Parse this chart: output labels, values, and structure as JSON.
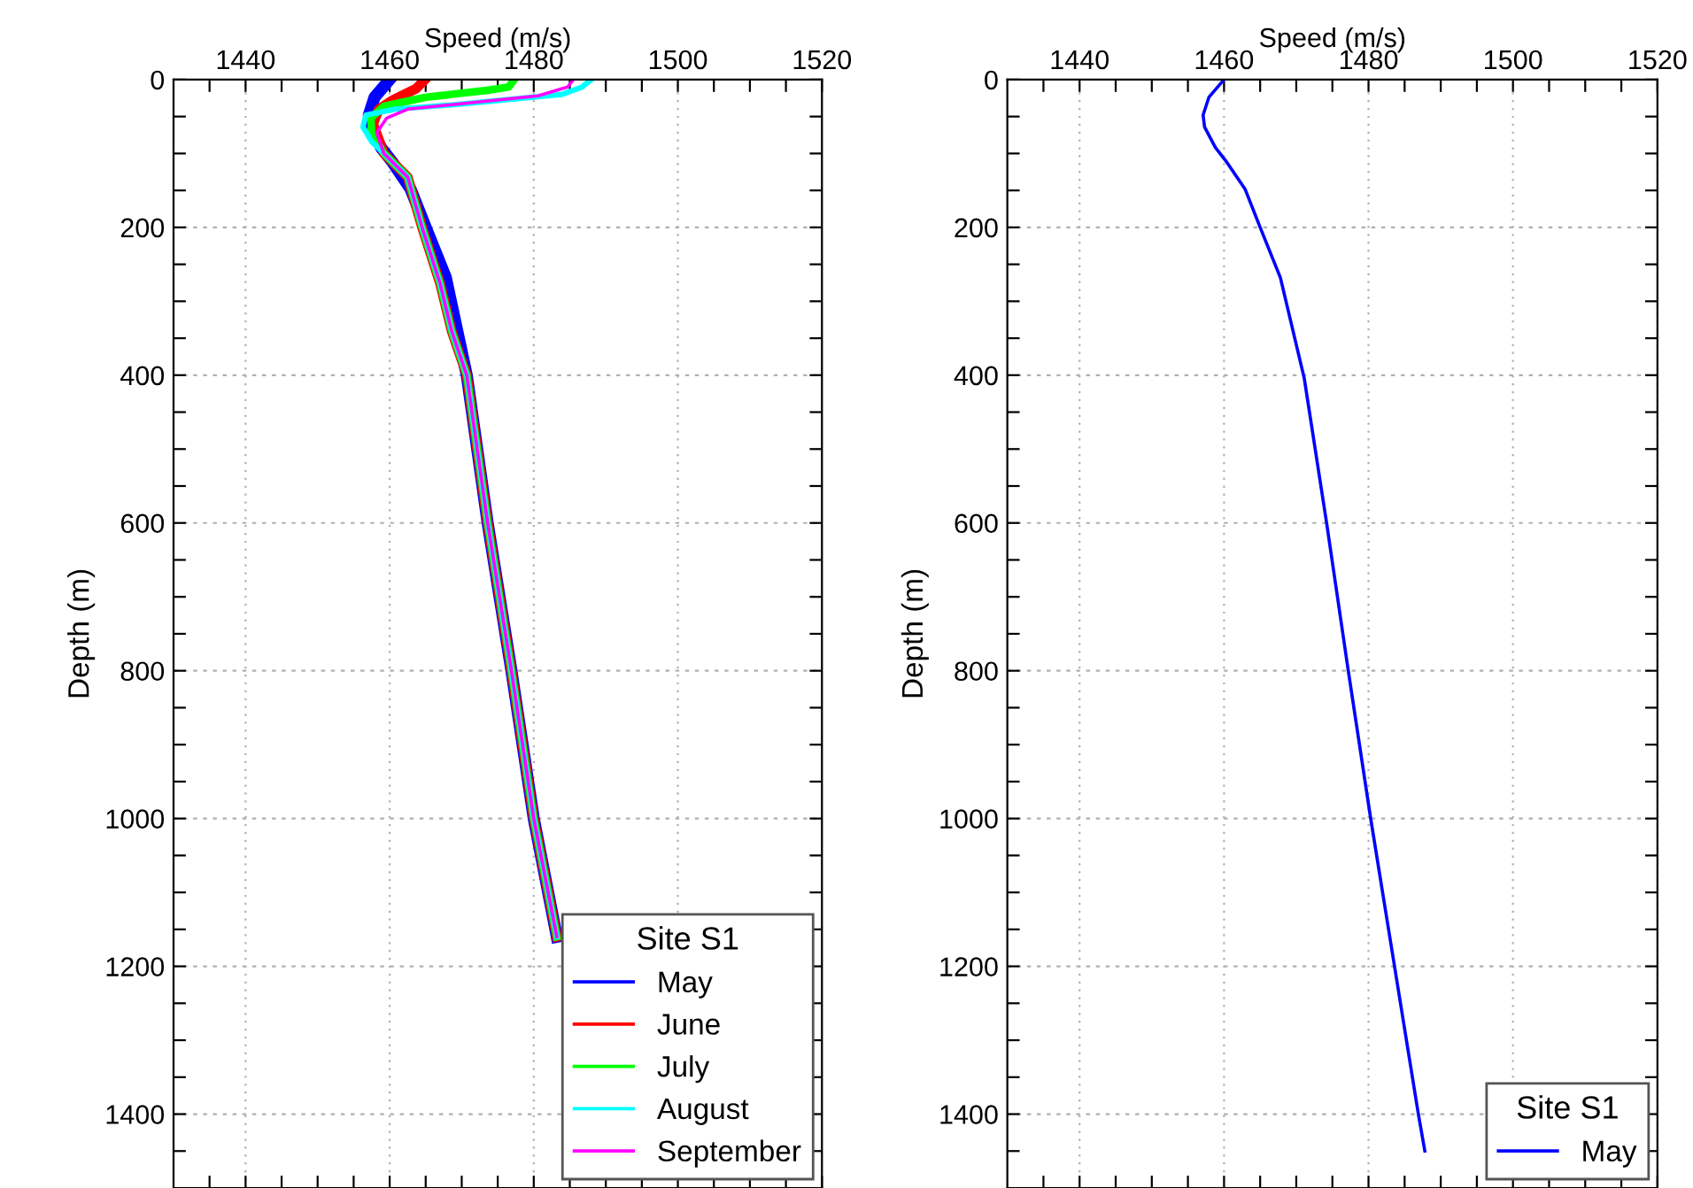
{
  "chart_data": [
    {
      "type": "line",
      "xlabel": "Speed (m/s)",
      "ylabel": "Depth (m)",
      "legend_title": "Site S1",
      "legend": "bottom right",
      "grid": true,
      "line_style": "solid",
      "xlim": [
        1430,
        1520
      ],
      "ylim": [
        1500,
        0
      ],
      "xticks": [
        {
          "value": 1435,
          "label": null
        },
        1440,
        {
          "value": 1445,
          "label": null
        },
        {
          "value": 1450,
          "label": null
        },
        {
          "value": 1455,
          "label": null
        },
        1460,
        {
          "value": 1465,
          "label": null
        },
        {
          "value": 1470,
          "label": null
        },
        {
          "value": 1475,
          "label": null
        },
        1480,
        {
          "value": 1485,
          "label": null
        },
        {
          "value": 1490,
          "label": null
        },
        {
          "value": 1495,
          "label": null
        },
        1500,
        {
          "value": 1505,
          "label": null
        },
        {
          "value": 1510,
          "label": null
        },
        {
          "value": 1515,
          "label": null
        },
        1520
      ],
      "yticks": [
        0,
        {
          "value": 50,
          "label": null
        },
        {
          "value": 100,
          "label": null
        },
        {
          "value": 150,
          "label": null
        },
        200,
        {
          "value": 250,
          "label": null
        },
        {
          "value": 300,
          "label": null
        },
        {
          "value": 350,
          "label": null
        },
        400,
        {
          "value": 450,
          "label": null
        },
        {
          "value": 500,
          "label": null
        },
        {
          "value": 550,
          "label": null
        },
        600,
        {
          "value": 650,
          "label": null
        },
        {
          "value": 700,
          "label": null
        },
        {
          "value": 750,
          "label": null
        },
        800,
        {
          "value": 850,
          "label": null
        },
        {
          "value": 900,
          "label": null
        },
        {
          "value": 950,
          "label": null
        },
        1000,
        {
          "value": 1050,
          "label": null
        },
        {
          "value": 1100,
          "label": null
        },
        {
          "value": 1150,
          "label": null
        },
        1200,
        {
          "value": 1250,
          "label": null
        },
        {
          "value": 1300,
          "label": null
        },
        {
          "value": 1350,
          "label": null
        },
        1400,
        {
          "value": 1450,
          "label": null
        }
      ],
      "series": [
        {
          "name": "May",
          "color": "#0000ff",
          "x": [
            1460,
            1457.9,
            1457.1,
            1457.3,
            1458.8,
            1460.4,
            1462.9,
            1465,
            1467.8,
            1470.7,
            1473.6,
            1476.9,
            1480,
            1483.2
          ],
          "values": [
            0,
            24,
            48,
            64,
            92,
            112,
            148,
            200,
            268,
            400,
            600,
            800,
            1000,
            1160
          ]
        },
        {
          "name": "June",
          "color": "#ff0000",
          "x": [
            1464.9,
            1463.7,
            1460.4,
            1458.5,
            1457.7,
            1459.2,
            1462.5,
            1464.5,
            1467,
            1468.6,
            1470.7,
            1473.6,
            1476.9,
            1480,
            1483.2
          ],
          "values": [
            0,
            12,
            28,
            40,
            60,
            100,
            132,
            200,
            276,
            340,
            400,
            600,
            800,
            1000,
            1160
          ]
        },
        {
          "name": "July",
          "color": "#00ff00",
          "x": [
            1477.3,
            1476.5,
            1474,
            1464.9,
            1459.2,
            1457.4,
            1457.5,
            1459.2,
            1462.5,
            1464.5,
            1467,
            1468.6,
            1470.7,
            1473.6,
            1476.9,
            1480,
            1483.2
          ],
          "values": [
            0,
            10,
            14,
            24,
            36,
            52,
            72,
            100,
            132,
            200,
            276,
            340,
            400,
            600,
            800,
            1000,
            1160
          ]
        },
        {
          "name": "August",
          "color": "#00ffff",
          "x": [
            1488,
            1486.7,
            1483.9,
            1469,
            1460.8,
            1456.7,
            1456.3,
            1457.5,
            1459.2,
            1462.5,
            1464.5,
            1467,
            1468.6,
            1470.7,
            1473.6,
            1476.9,
            1480,
            1483.2
          ],
          "values": [
            0,
            10,
            20,
            34,
            40,
            48,
            64,
            84,
            100,
            132,
            200,
            276,
            340,
            400,
            600,
            800,
            1000,
            1160
          ]
        },
        {
          "name": "September",
          "color": "#ff00ff",
          "x": [
            1485.5,
            1484.7,
            1480.6,
            1462.5,
            1459.6,
            1458.2,
            1459.2,
            1462.5,
            1464.5,
            1467,
            1468.6,
            1470.7,
            1473.6,
            1476.9,
            1480,
            1483.2
          ],
          "values": [
            0,
            10,
            22,
            40,
            52,
            72,
            100,
            132,
            200,
            276,
            340,
            400,
            600,
            800,
            1000,
            1160
          ]
        }
      ]
    },
    {
      "type": "line",
      "xlabel": "Speed (m/s)",
      "ylabel": "Depth (m)",
      "legend_title": "Site S1",
      "legend": "bottom right",
      "grid": true,
      "line_style": "solid",
      "xlim": [
        1430,
        1520
      ],
      "ylim": [
        1500,
        0
      ],
      "xticks": [
        {
          "value": 1435,
          "label": null
        },
        1440,
        {
          "value": 1445,
          "label": null
        },
        {
          "value": 1450,
          "label": null
        },
        {
          "value": 1455,
          "label": null
        },
        1460,
        {
          "value": 1465,
          "label": null
        },
        {
          "value": 1470,
          "label": null
        },
        {
          "value": 1475,
          "label": null
        },
        1480,
        {
          "value": 1485,
          "label": null
        },
        {
          "value": 1490,
          "label": null
        },
        {
          "value": 1495,
          "label": null
        },
        1500,
        {
          "value": 1505,
          "label": null
        },
        {
          "value": 1510,
          "label": null
        },
        {
          "value": 1515,
          "label": null
        },
        1520
      ],
      "yticks": [
        0,
        {
          "value": 50,
          "label": null
        },
        {
          "value": 100,
          "label": null
        },
        {
          "value": 150,
          "label": null
        },
        200,
        {
          "value": 250,
          "label": null
        },
        {
          "value": 300,
          "label": null
        },
        {
          "value": 350,
          "label": null
        },
        400,
        {
          "value": 450,
          "label": null
        },
        {
          "value": 500,
          "label": null
        },
        {
          "value": 550,
          "label": null
        },
        600,
        {
          "value": 650,
          "label": null
        },
        {
          "value": 700,
          "label": null
        },
        {
          "value": 750,
          "label": null
        },
        800,
        {
          "value": 850,
          "label": null
        },
        {
          "value": 900,
          "label": null
        },
        {
          "value": 950,
          "label": null
        },
        1000,
        {
          "value": 1050,
          "label": null
        },
        {
          "value": 1100,
          "label": null
        },
        {
          "value": 1150,
          "label": null
        },
        1200,
        {
          "value": 1250,
          "label": null
        },
        {
          "value": 1300,
          "label": null
        },
        {
          "value": 1350,
          "label": null
        },
        1400,
        {
          "value": 1450,
          "label": null
        }
      ],
      "series": [
        {
          "name": "May",
          "color": "#0000ff",
          "x": [
            1460,
            1457.9,
            1457.1,
            1457.3,
            1458.8,
            1460.4,
            1462.9,
            1465,
            1467.8,
            1471.1,
            1474.2,
            1477.2,
            1480.3,
            1483.6,
            1486.9,
            1487.8
          ],
          "values": [
            0,
            24,
            48,
            64,
            92,
            112,
            148,
            200,
            268,
            404,
            600,
            800,
            1000,
            1200,
            1400,
            1450
          ]
        }
      ]
    }
  ]
}
